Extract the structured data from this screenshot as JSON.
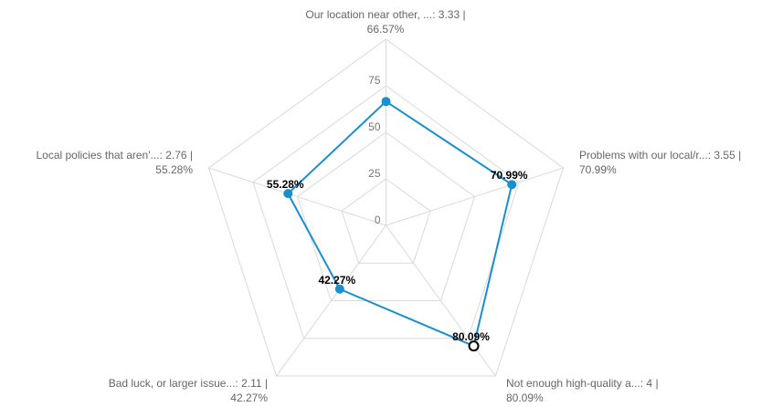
{
  "chart_data": {
    "type": "radar",
    "categories": [
      "Our location near other, ...",
      "Problems with our local/r...",
      "Not enough high-quality a...",
      "Bad luck, or larger issue...",
      "Local policies that aren'..."
    ],
    "category_labels": [
      [
        "Our location near other, ...: 3.33 |",
        "66.57%"
      ],
      [
        "Problems with our local/r...: 3.55 |",
        "70.99%"
      ],
      [
        "Not enough high-quality a...: 4 |",
        "80.09%"
      ],
      [
        "Bad luck, or larger issue...: 2.11 |",
        "42.27%"
      ],
      [
        "Local policies that aren'...: 2.76 |",
        "55.28%"
      ]
    ],
    "scores": [
      3.33,
      3.55,
      4,
      2.11,
      2.76
    ],
    "series": [
      {
        "values": [
          66.57,
          70.99,
          80.09,
          42.27,
          55.28
        ]
      }
    ],
    "data_labels": [
      "",
      "70.99%",
      "80.09%",
      "42.27%",
      "55.28%"
    ],
    "highlighted_point": 2,
    "radial_ticks": [
      "0",
      "25",
      "50",
      "75"
    ],
    "range": [
      0,
      100
    ],
    "grid": true,
    "legend": "none",
    "colors": {
      "series": "#1a8fd0",
      "grid": "#d9d9d9",
      "highlight_fill": "#ffffff",
      "highlight_stroke": "#000000"
    }
  }
}
